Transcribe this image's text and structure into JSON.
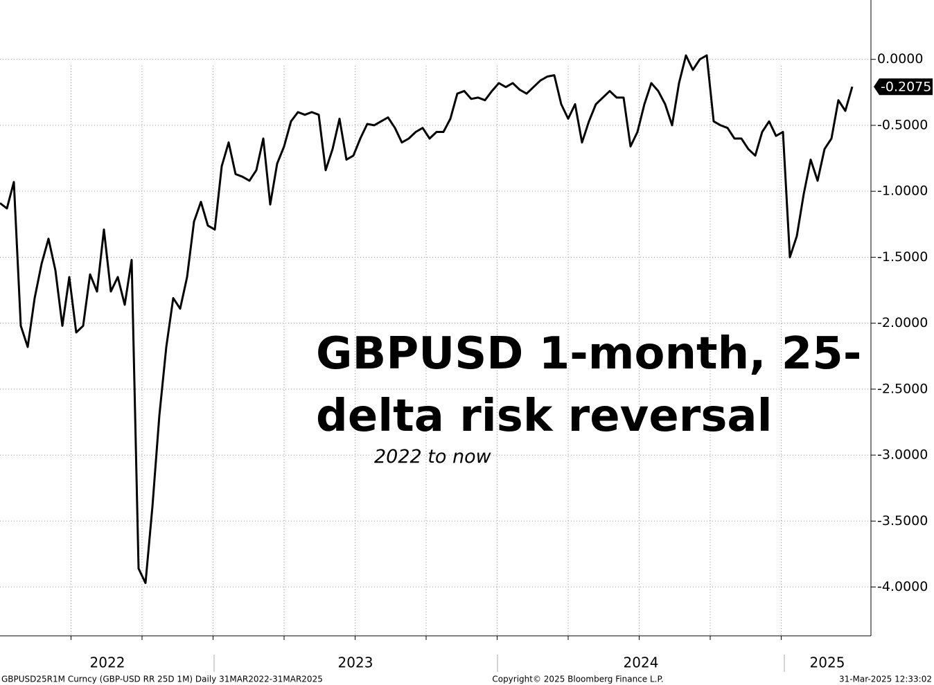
{
  "chart_data": {
    "type": "line",
    "title": "GBPUSD 1-month, 25-delta risk reversal",
    "subtitle": "2022 to now",
    "year_labels": [
      "2022",
      "2023",
      "2024",
      "2025"
    ],
    "current_label": "-0.2075",
    "footer_left": "GBPUSD25R1M Curncy (GBP-USD RR 25D 1M)  Daily 31MAR2022-31MAR2025",
    "footer_center": "Copyright© 2025 Bloomberg Finance L.P.",
    "footer_right": "31-Mar-2025 12:33:02",
    "grid": true,
    "series": [
      {
        "name": "GBPUSD25R1M",
        "color": "#000000",
        "values": [
          -1.09,
          -1.13,
          -0.93,
          -2.02,
          -2.18,
          -1.81,
          -1.55,
          -1.36,
          -1.6,
          -2.02,
          -1.65,
          -2.07,
          -2.02,
          -1.63,
          -1.76,
          -1.29,
          -1.76,
          -1.65,
          -1.86,
          -1.52,
          -3.86,
          -3.97,
          -3.39,
          -2.7,
          -2.18,
          -1.81,
          -1.89,
          -1.65,
          -1.23,
          -1.08,
          -1.26,
          -1.29,
          -0.81,
          -0.63,
          -0.87,
          -0.89,
          -0.92,
          -0.84,
          -0.6,
          -1.1,
          -0.79,
          -0.66,
          -0.47,
          -0.4,
          -0.42,
          -0.4,
          -0.42,
          -0.84,
          -0.68,
          -0.45,
          -0.76,
          -0.73,
          -0.6,
          -0.49,
          -0.5,
          -0.47,
          -0.44,
          -0.52,
          -0.63,
          -0.6,
          -0.55,
          -0.52,
          -0.6,
          -0.55,
          -0.55,
          -0.45,
          -0.26,
          -0.24,
          -0.3,
          -0.29,
          -0.31,
          -0.24,
          -0.18,
          -0.21,
          -0.18,
          -0.23,
          -0.26,
          -0.21,
          -0.16,
          -0.13,
          -0.12,
          -0.34,
          -0.45,
          -0.34,
          -0.63,
          -0.47,
          -0.34,
          -0.29,
          -0.24,
          -0.29,
          -0.29,
          -0.66,
          -0.55,
          -0.34,
          -0.18,
          -0.24,
          -0.34,
          -0.5,
          -0.18,
          0.03,
          -0.08,
          0.0,
          0.03,
          -0.47,
          -0.5,
          -0.52,
          -0.6,
          -0.6,
          -0.68,
          -0.73,
          -0.55,
          -0.47,
          -0.58,
          -0.55,
          -1.5,
          -1.34,
          -1.02,
          -0.76,
          -0.92,
          -0.68,
          -0.6,
          -0.31,
          -0.39,
          -0.2075
        ]
      }
    ],
    "ylim": [
      -4.37,
      0.45
    ],
    "yticks": [
      {
        "value": 0,
        "label": "0.0000"
      },
      {
        "value": -0.5,
        "label": "-0.5000"
      },
      {
        "value": -1,
        "label": "-1.0000"
      },
      {
        "value": -1.5,
        "label": "-1.5000"
      },
      {
        "value": -2,
        "label": "-2.0000"
      },
      {
        "value": -2.5,
        "label": "-2.5000"
      },
      {
        "value": -3,
        "label": "-3.0000"
      },
      {
        "value": -3.5,
        "label": "-3.5000"
      },
      {
        "value": -4,
        "label": "-4.0000"
      }
    ]
  }
}
